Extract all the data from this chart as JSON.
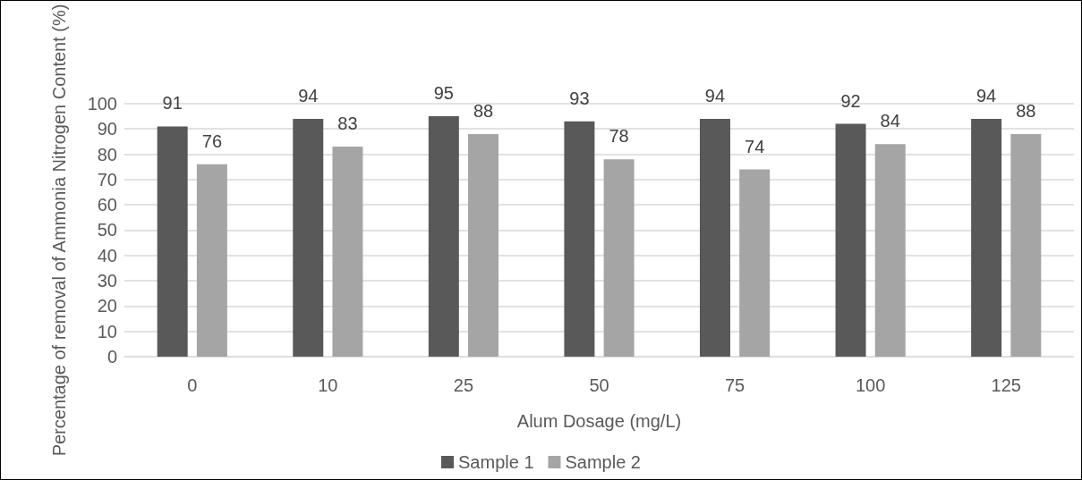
{
  "chart_data": {
    "type": "bar",
    "xlabel": "Alum Dosage (mg/L)",
    "ylabel": "Percentage of removal of Ammonia Nitrogen Content (%)",
    "categories": [
      "0",
      "10",
      "25",
      "50",
      "75",
      "100",
      "125"
    ],
    "series": [
      {
        "name": "Sample 1",
        "color": "#595959",
        "values": [
          91,
          94,
          95,
          93,
          94,
          92,
          94
        ]
      },
      {
        "name": "Sample 2",
        "color": "#a5a5a5",
        "values": [
          76,
          83,
          88,
          78,
          74,
          84,
          88
        ]
      }
    ],
    "ylim": [
      0,
      100
    ],
    "yticks": [
      0,
      10,
      20,
      30,
      40,
      50,
      60,
      70,
      80,
      90,
      100
    ],
    "grid": "y",
    "legend": "bottom",
    "data_labels": true
  }
}
